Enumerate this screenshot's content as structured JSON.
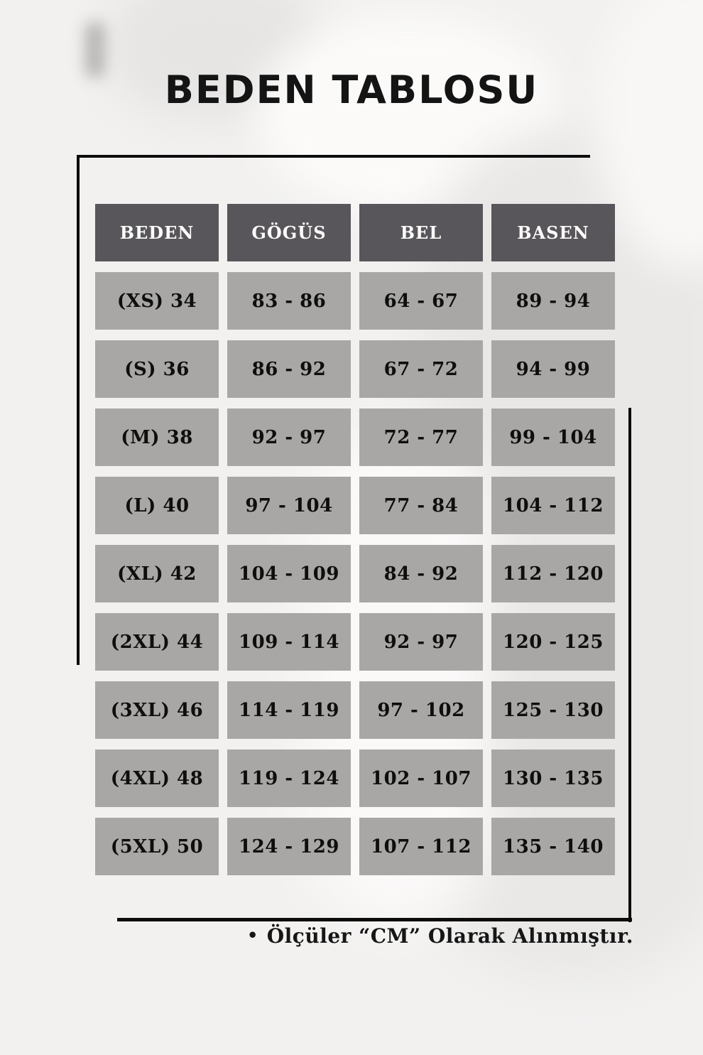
{
  "title": "BEDEN TABLOSU",
  "chart_data": {
    "type": "table",
    "title": "BEDEN TABLOSU",
    "columns": [
      "BEDEN",
      "GÖGÜS",
      "BEL",
      "BASEN"
    ],
    "rows": [
      [
        "(XS) 34",
        "83 - 86",
        "64 - 67",
        "89 - 94"
      ],
      [
        "(S) 36",
        "86 - 92",
        "67 - 72",
        "94 - 99"
      ],
      [
        "(M) 38",
        "92 - 97",
        "72 - 77",
        "99 - 104"
      ],
      [
        "(L) 40",
        "97 - 104",
        "77 - 84",
        "104 - 112"
      ],
      [
        "(XL) 42",
        "104 - 109",
        "84 - 92",
        "112 - 120"
      ],
      [
        "(2XL) 44",
        "109 - 114",
        "92 - 97",
        "120 - 125"
      ],
      [
        "(3XL) 46",
        "114 - 119",
        "97 - 102",
        "125 - 130"
      ],
      [
        "(4XL) 48",
        "119 - 124",
        "102 - 107",
        "130 - 135"
      ],
      [
        "(5XL) 50",
        "124 - 129",
        "107 - 112",
        "135 - 140"
      ]
    ],
    "units": "cm"
  },
  "footer": {
    "bullet": "•",
    "note": "Ölçüler “CM” Olarak Alınmıştır."
  },
  "colors": {
    "background": "#f2f1f0",
    "header_bg": "#58565a",
    "header_text": "#fbfbfa",
    "cell_bg": "#a8a7a5",
    "cell_text": "#0e0e0e",
    "frame_line": "#0c0c0c"
  }
}
